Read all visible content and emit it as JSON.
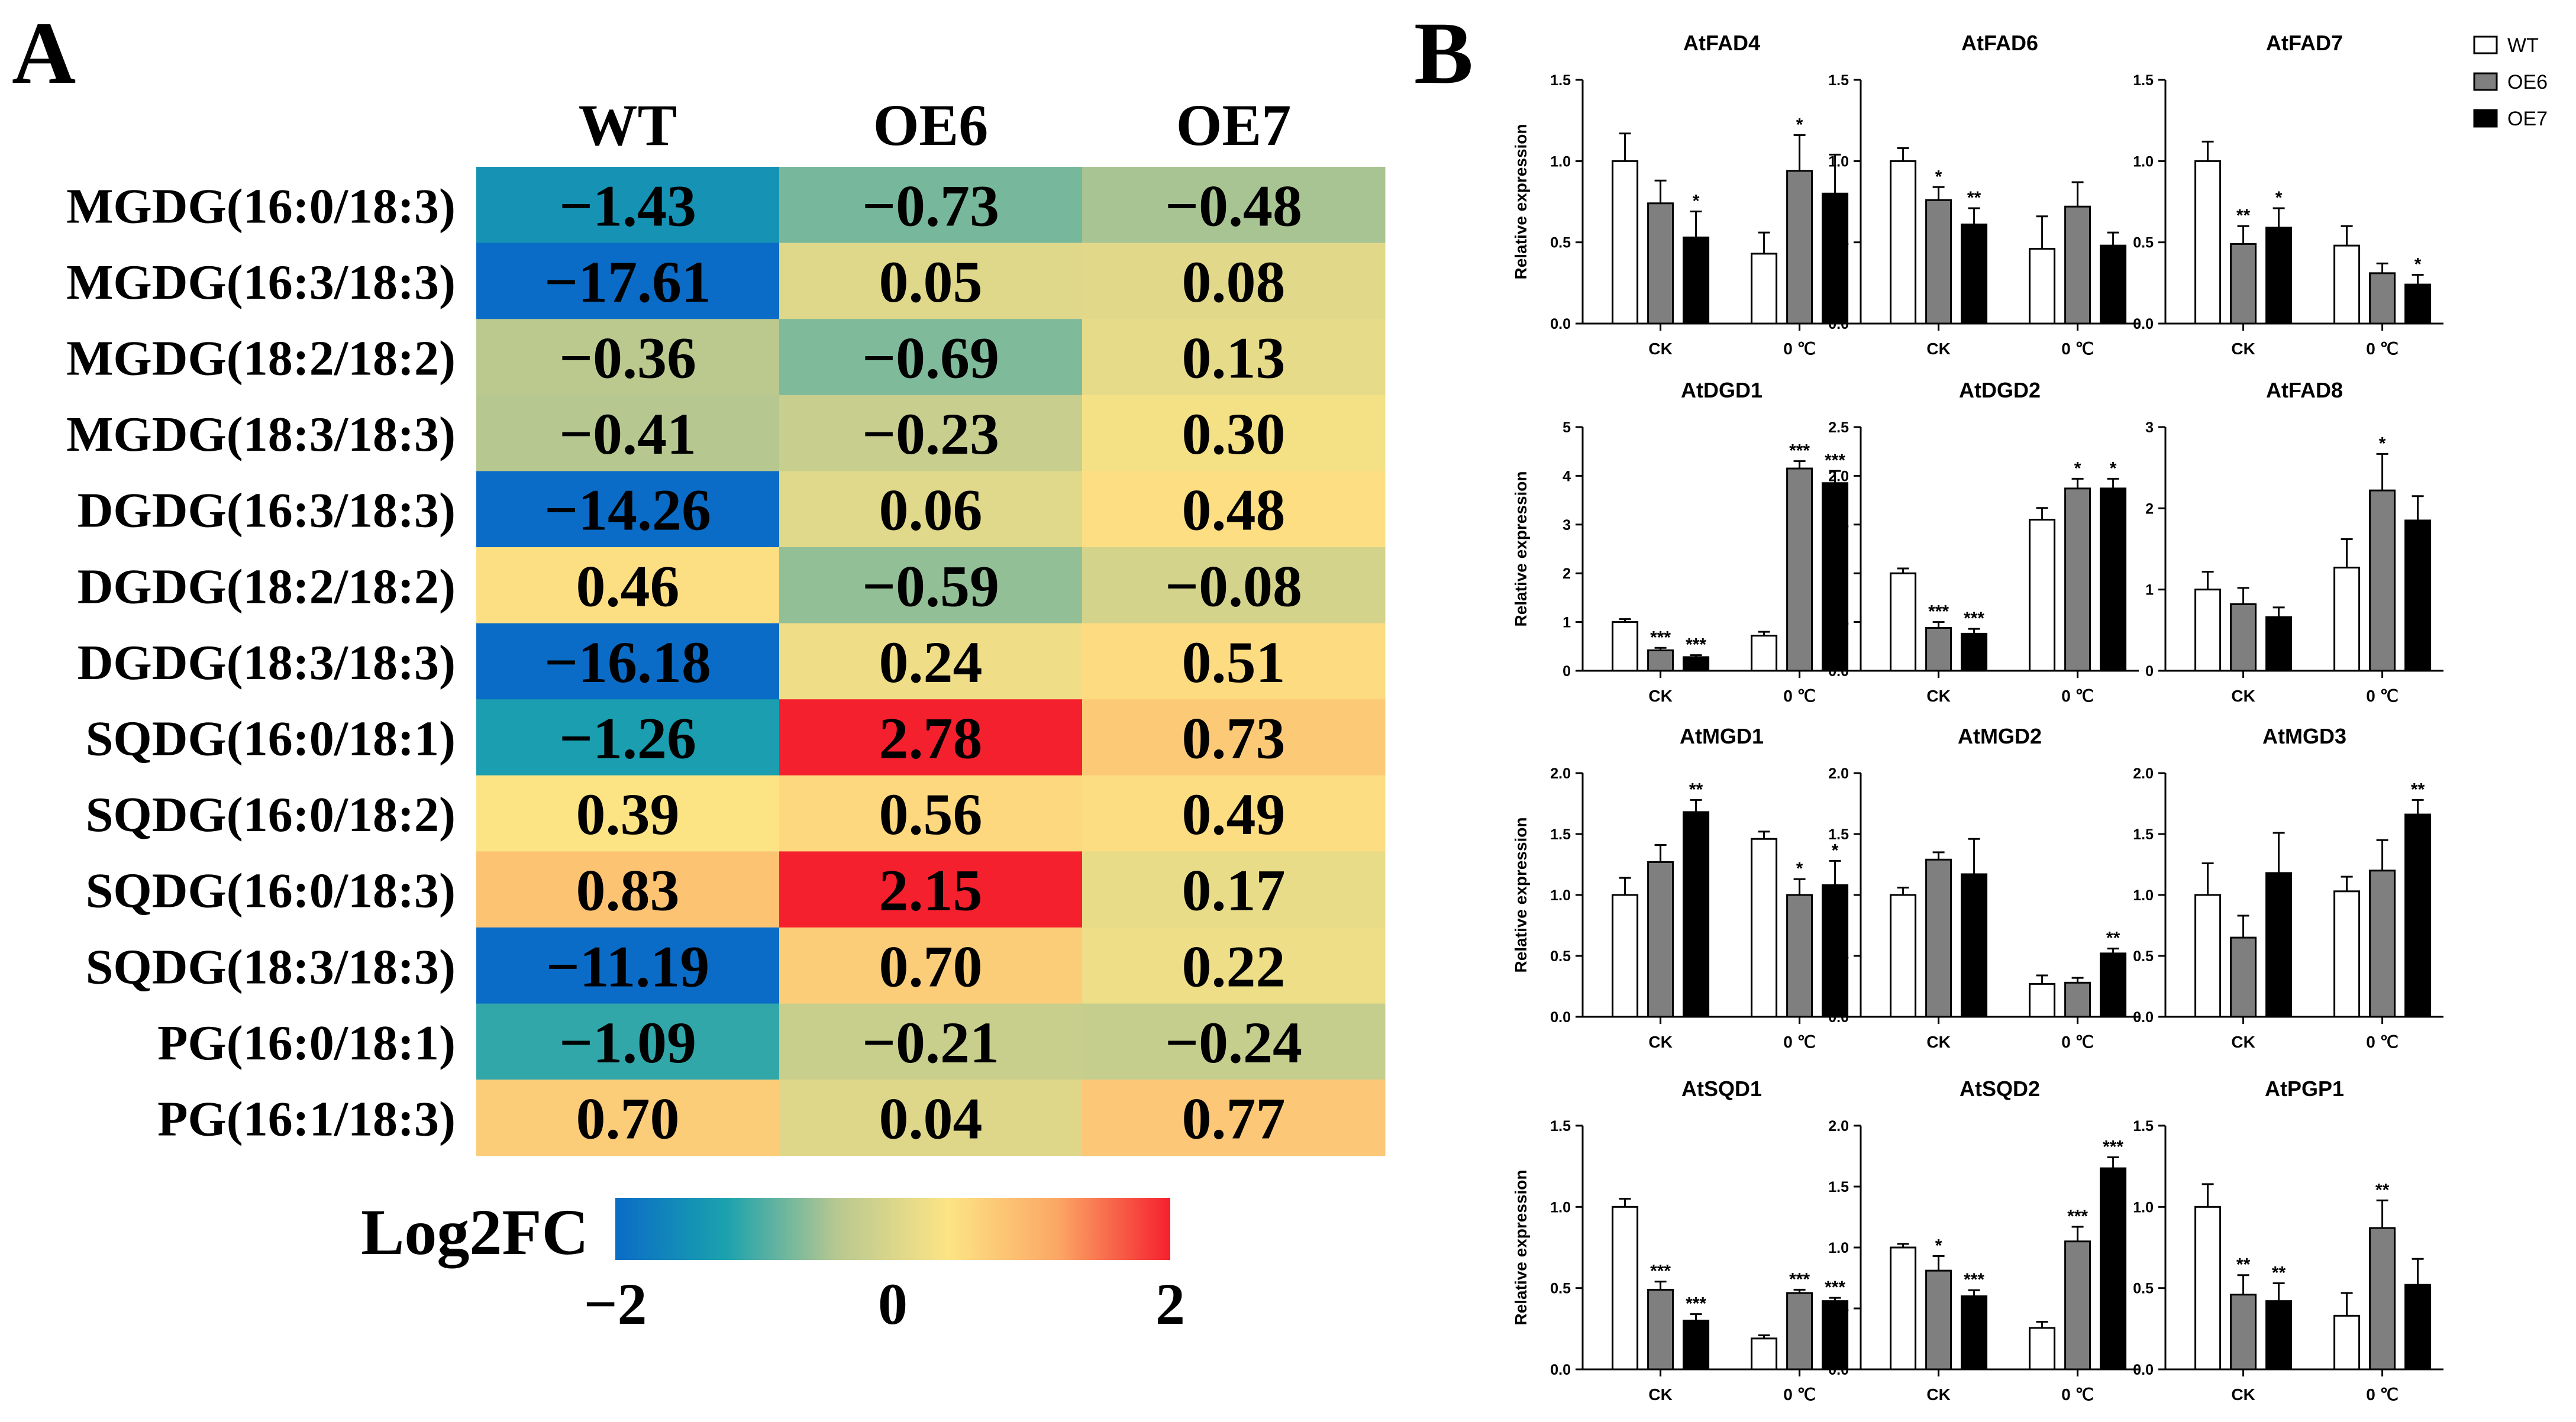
{
  "panel_a": {
    "label": "A"
  },
  "panel_b": {
    "label": "B"
  },
  "chart_data": [
    {
      "type": "heatmap",
      "title": "",
      "columns": [
        "WT",
        "OE6",
        "OE7"
      ],
      "rows": [
        "MGDG(16:0/18:3)",
        "MGDG(16:3/18:3)",
        "MGDG(18:2/18:2)",
        "MGDG(18:3/18:3)",
        "DGDG(16:3/18:3)",
        "DGDG(18:2/18:2)",
        "DGDG(18:3/18:3)",
        "SQDG(16:0/18:1)",
        "SQDG(16:0/18:2)",
        "SQDG(16:0/18:3)",
        "SQDG(18:3/18:3)",
        "PG(16:0/18:1)",
        "PG(16:1/18:3)"
      ],
      "values": [
        [
          -1.43,
          -0.73,
          -0.48
        ],
        [
          -17.61,
          0.05,
          0.08
        ],
        [
          -0.36,
          -0.69,
          0.13
        ],
        [
          -0.41,
          -0.23,
          0.3
        ],
        [
          -14.26,
          0.06,
          0.48
        ],
        [
          0.46,
          -0.59,
          -0.08
        ],
        [
          -16.18,
          0.24,
          0.51
        ],
        [
          -1.26,
          2.78,
          0.73
        ],
        [
          0.39,
          0.56,
          0.49
        ],
        [
          0.83,
          2.15,
          0.17
        ],
        [
          -11.19,
          0.7,
          0.22
        ],
        [
          -1.09,
          -0.21,
          -0.24
        ],
        [
          0.7,
          0.04,
          0.77
        ]
      ],
      "value_labels": [
        [
          "−1.43",
          "−0.73",
          "−0.48"
        ],
        [
          "−17.61",
          "0.05",
          "0.08"
        ],
        [
          "−0.36",
          "−0.69",
          "0.13"
        ],
        [
          "−0.41",
          "−0.23",
          "0.30"
        ],
        [
          "−14.26",
          "0.06",
          "0.48"
        ],
        [
          "0.46",
          "−0.59",
          "−0.08"
        ],
        [
          "−16.18",
          "0.24",
          "0.51"
        ],
        [
          "−1.26",
          "2.78",
          "0.73"
        ],
        [
          "0.39",
          "0.56",
          "0.49"
        ],
        [
          "0.83",
          "2.15",
          "0.17"
        ],
        [
          "−11.19",
          "0.70",
          "0.22"
        ],
        [
          "−1.09",
          "−0.21",
          "−0.24"
        ],
        [
          "0.70",
          "0.04",
          "0.77"
        ]
      ],
      "colorbar": {
        "title": "Log2FC",
        "range": [
          -2,
          2
        ],
        "tick_labels": [
          "−2",
          "0",
          "2"
        ],
        "colors": [
          "#0a6cc6",
          "#1ba2ae",
          "#b8c890",
          "#fde485",
          "#fba664",
          "#f5202e"
        ]
      }
    },
    {
      "type": "bar",
      "subplots_layout": "4x3 grid",
      "ylabel": "Relative expression",
      "categories": [
        "CK",
        "0 ℃"
      ],
      "legend": {
        "position": "top-right",
        "entries": [
          {
            "name": "WT",
            "color": "#ffffff"
          },
          {
            "name": "OE6",
            "color": "#7f7f7f"
          },
          {
            "name": "OE7",
            "color": "#000000"
          }
        ]
      },
      "subplots": [
        {
          "title": "AtFAD4",
          "ylim": [
            0,
            1.5
          ],
          "yticks": [
            "0.0",
            "0.5",
            "1.0",
            "1.5"
          ],
          "series": [
            {
              "name": "WT",
              "values": [
                1.0,
                0.43
              ],
              "errors": [
                0.17,
                0.13
              ],
              "sig": [
                "",
                ""
              ]
            },
            {
              "name": "OE6",
              "values": [
                0.74,
                0.94
              ],
              "errors": [
                0.14,
                0.22
              ],
              "sig": [
                "",
                "*"
              ]
            },
            {
              "name": "OE7",
              "values": [
                0.53,
                0.8
              ],
              "errors": [
                0.16,
                0.24
              ],
              "sig": [
                "*",
                ""
              ]
            }
          ]
        },
        {
          "title": "AtFAD6",
          "ylim": [
            0,
            1.5
          ],
          "yticks": [
            "0.0",
            "0.5",
            "1.0",
            "1.5"
          ],
          "series": [
            {
              "name": "WT",
              "values": [
                1.0,
                0.46
              ],
              "errors": [
                0.08,
                0.2
              ],
              "sig": [
                "",
                ""
              ]
            },
            {
              "name": "OE6",
              "values": [
                0.76,
                0.72
              ],
              "errors": [
                0.08,
                0.15
              ],
              "sig": [
                "*",
                ""
              ]
            },
            {
              "name": "OE7",
              "values": [
                0.61,
                0.48
              ],
              "errors": [
                0.1,
                0.08
              ],
              "sig": [
                "**",
                ""
              ]
            }
          ]
        },
        {
          "title": "AtFAD7",
          "ylim": [
            0,
            1.5
          ],
          "yticks": [
            "0.0",
            "0.5",
            "1.0",
            "1.5"
          ],
          "series": [
            {
              "name": "WT",
              "values": [
                1.0,
                0.48
              ],
              "errors": [
                0.12,
                0.12
              ],
              "sig": [
                "",
                ""
              ]
            },
            {
              "name": "OE6",
              "values": [
                0.49,
                0.31
              ],
              "errors": [
                0.11,
                0.06
              ],
              "sig": [
                "**",
                ""
              ]
            },
            {
              "name": "OE7",
              "values": [
                0.59,
                0.24
              ],
              "errors": [
                0.12,
                0.06
              ],
              "sig": [
                "*",
                "*"
              ]
            }
          ]
        },
        {
          "title": "AtDGD1",
          "ylim": [
            0,
            5
          ],
          "yticks": [
            "0",
            "1",
            "2",
            "3",
            "4",
            "5"
          ],
          "series": [
            {
              "name": "WT",
              "values": [
                1.0,
                0.72
              ],
              "errors": [
                0.06,
                0.08
              ],
              "sig": [
                "",
                ""
              ]
            },
            {
              "name": "OE6",
              "values": [
                0.42,
                4.15
              ],
              "errors": [
                0.05,
                0.15
              ],
              "sig": [
                "***",
                "***"
              ]
            },
            {
              "name": "OE7",
              "values": [
                0.28,
                3.85
              ],
              "errors": [
                0.04,
                0.25
              ],
              "sig": [
                "***",
                "***"
              ]
            }
          ]
        },
        {
          "title": "AtDGD2",
          "ylim": [
            0,
            2.5
          ],
          "yticks": [
            "0.0",
            "0.5",
            "1.0",
            "1.5",
            "2.0",
            "2.5"
          ],
          "series": [
            {
              "name": "WT",
              "values": [
                1.0,
                1.55
              ],
              "errors": [
                0.05,
                0.12
              ],
              "sig": [
                "",
                ""
              ]
            },
            {
              "name": "OE6",
              "values": [
                0.44,
                1.87
              ],
              "errors": [
                0.06,
                0.1
              ],
              "sig": [
                "***",
                "*"
              ]
            },
            {
              "name": "OE7",
              "values": [
                0.38,
                1.87
              ],
              "errors": [
                0.05,
                0.1
              ],
              "sig": [
                "***",
                "*"
              ]
            }
          ]
        },
        {
          "title": "AtFAD8",
          "ylim": [
            0,
            3
          ],
          "yticks": [
            "0",
            "1",
            "2",
            "3"
          ],
          "series": [
            {
              "name": "WT",
              "values": [
                1.0,
                1.27
              ],
              "errors": [
                0.22,
                0.35
              ],
              "sig": [
                "",
                ""
              ]
            },
            {
              "name": "OE6",
              "values": [
                0.82,
                2.22
              ],
              "errors": [
                0.2,
                0.45
              ],
              "sig": [
                "",
                "*"
              ]
            },
            {
              "name": "OE7",
              "values": [
                0.66,
                1.85
              ],
              "errors": [
                0.12,
                0.3
              ],
              "sig": [
                "",
                ""
              ]
            }
          ]
        },
        {
          "title": "AtMGD1",
          "ylim": [
            0,
            2.0
          ],
          "yticks": [
            "0.0",
            "0.5",
            "1.0",
            "1.5",
            "2.0"
          ],
          "series": [
            {
              "name": "WT",
              "values": [
                1.0,
                1.46
              ],
              "errors": [
                0.14,
                0.06
              ],
              "sig": [
                "",
                ""
              ]
            },
            {
              "name": "OE6",
              "values": [
                1.27,
                1.0
              ],
              "errors": [
                0.14,
                0.13
              ],
              "sig": [
                "",
                "*"
              ]
            },
            {
              "name": "OE7",
              "values": [
                1.68,
                1.08
              ],
              "errors": [
                0.1,
                0.2
              ],
              "sig": [
                "**",
                "*"
              ]
            }
          ]
        },
        {
          "title": "AtMGD2",
          "ylim": [
            0,
            2.0
          ],
          "yticks": [
            "0.0",
            "0.5",
            "1.0",
            "1.5",
            "2.0"
          ],
          "series": [
            {
              "name": "WT",
              "values": [
                1.0,
                0.27
              ],
              "errors": [
                0.06,
                0.07
              ],
              "sig": [
                "",
                ""
              ]
            },
            {
              "name": "OE6",
              "values": [
                1.29,
                0.28
              ],
              "errors": [
                0.06,
                0.04
              ],
              "sig": [
                "",
                ""
              ]
            },
            {
              "name": "OE7",
              "values": [
                1.17,
                0.52
              ],
              "errors": [
                0.29,
                0.04
              ],
              "sig": [
                "",
                "**"
              ]
            }
          ]
        },
        {
          "title": "AtMGD3",
          "ylim": [
            0,
            2.0
          ],
          "yticks": [
            "0.0",
            "0.5",
            "1.0",
            "1.5",
            "2.0"
          ],
          "series": [
            {
              "name": "WT",
              "values": [
                1.0,
                1.03
              ],
              "errors": [
                0.26,
                0.12
              ],
              "sig": [
                "",
                ""
              ]
            },
            {
              "name": "OE6",
              "values": [
                0.65,
                1.2
              ],
              "errors": [
                0.18,
                0.25
              ],
              "sig": [
                "",
                ""
              ]
            },
            {
              "name": "OE7",
              "values": [
                1.18,
                1.66
              ],
              "errors": [
                0.33,
                0.12
              ],
              "sig": [
                "",
                "**"
              ]
            }
          ]
        },
        {
          "title": "AtSQD1",
          "ylim": [
            0,
            1.5
          ],
          "yticks": [
            "0.0",
            "0.5",
            "1.0",
            "1.5"
          ],
          "series": [
            {
              "name": "WT",
              "values": [
                1.0,
                0.19
              ],
              "errors": [
                0.05,
                0.02
              ],
              "sig": [
                "",
                ""
              ]
            },
            {
              "name": "OE6",
              "values": [
                0.49,
                0.47
              ],
              "errors": [
                0.05,
                0.02
              ],
              "sig": [
                "***",
                "***"
              ]
            },
            {
              "name": "OE7",
              "values": [
                0.3,
                0.42
              ],
              "errors": [
                0.04,
                0.02
              ],
              "sig": [
                "***",
                "***"
              ]
            }
          ]
        },
        {
          "title": "AtSQD2",
          "ylim": [
            0,
            2.0
          ],
          "yticks": [
            "0.0",
            "0.5",
            "1.0",
            "1.5",
            "2.0"
          ],
          "series": [
            {
              "name": "WT",
              "values": [
                1.0,
                0.34
              ],
              "errors": [
                0.03,
                0.05
              ],
              "sig": [
                "",
                ""
              ]
            },
            {
              "name": "OE6",
              "values": [
                0.81,
                1.05
              ],
              "errors": [
                0.12,
                0.12
              ],
              "sig": [
                "*",
                "***"
              ]
            },
            {
              "name": "OE7",
              "values": [
                0.6,
                1.65
              ],
              "errors": [
                0.05,
                0.09
              ],
              "sig": [
                "***",
                "***"
              ]
            }
          ]
        },
        {
          "title": "AtPGP1",
          "ylim": [
            0,
            1.5
          ],
          "yticks": [
            "0.0",
            "0.5",
            "1.0",
            "1.5"
          ],
          "series": [
            {
              "name": "WT",
              "values": [
                1.0,
                0.33
              ],
              "errors": [
                0.14,
                0.14
              ],
              "sig": [
                "",
                ""
              ]
            },
            {
              "name": "OE6",
              "values": [
                0.46,
                0.87
              ],
              "errors": [
                0.12,
                0.17
              ],
              "sig": [
                "**",
                "**"
              ]
            },
            {
              "name": "OE7",
              "values": [
                0.42,
                0.52
              ],
              "errors": [
                0.11,
                0.16
              ],
              "sig": [
                "**",
                ""
              ]
            }
          ]
        }
      ]
    }
  ]
}
